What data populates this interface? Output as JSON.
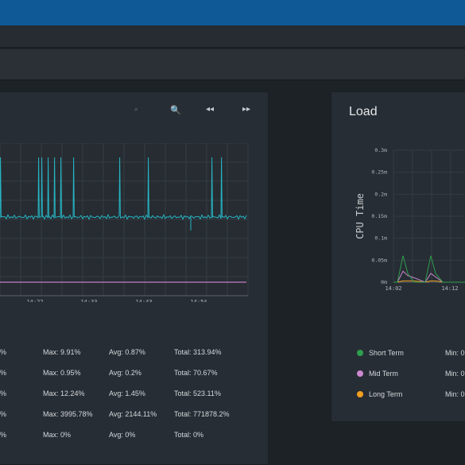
{
  "load_panel": {
    "title": "Load",
    "chart_data": {
      "type": "line",
      "ylabel": "CPU Time",
      "y_ticks": [
        "0.3m",
        "0.25m",
        "0.2m",
        "0.15m",
        "0.1m",
        "0.05m",
        "0m"
      ],
      "x_ticks": [
        "14:02",
        "14:12"
      ],
      "series": [
        {
          "name": "Short Term",
          "color": "#2e9e4e",
          "values": [
            0.0,
            0.0,
            0.06,
            0.02,
            0.0,
            0.0,
            0.06,
            0.02,
            0.0,
            0.0
          ]
        },
        {
          "name": "Mid Term",
          "color": "#cc88d0",
          "values": [
            0.0,
            0.0,
            0.025,
            0.015,
            0.01,
            0.0,
            0.02,
            0.012,
            0.0,
            0.0
          ]
        },
        {
          "name": "Long Term",
          "color": "#f0a020",
          "values": [
            0.0,
            0.0,
            0.003,
            0.003,
            0.003,
            0.0,
            0.003,
            0.003,
            0.0,
            0.0
          ]
        }
      ]
    },
    "legend": [
      {
        "label": "Short Term",
        "color": "#2e9e4e",
        "min": "Min: 0"
      },
      {
        "label": "Mid Term",
        "color": "#cc88d0",
        "min": "Min: 0"
      },
      {
        "label": "Long Term",
        "color": "#f0a020",
        "min": "Min: 0"
      }
    ]
  },
  "cpu_panel": {
    "controls": {
      "reset": "⌕",
      "zoom": "🔍",
      "back": "◂◂",
      "forward": "▸▸"
    },
    "chart_data": {
      "type": "line",
      "x_ticks": [
        "14:22",
        "14:33",
        "14:43",
        "14:54"
      ]
    },
    "stats": [
      {
        "min": "%",
        "max": "Max: 9.91%",
        "avg": "Avg: 0.87%",
        "total": "Total: 313.94%"
      },
      {
        "min": "%",
        "max": "Max: 0.95%",
        "avg": "Avg: 0.2%",
        "total": "Total: 70.67%"
      },
      {
        "min": "%",
        "max": "Max: 12.24%",
        "avg": "Avg: 1.45%",
        "total": "Total: 523.11%"
      },
      {
        "min": "%",
        "max": "Max: 3995.78%",
        "avg": "Avg: 2144.11%",
        "total": "Total: 771878.2%"
      },
      {
        "min": "%",
        "max": "Max: 0%",
        "avg": "Avg: 0%",
        "total": "Total: 0%"
      }
    ]
  }
}
